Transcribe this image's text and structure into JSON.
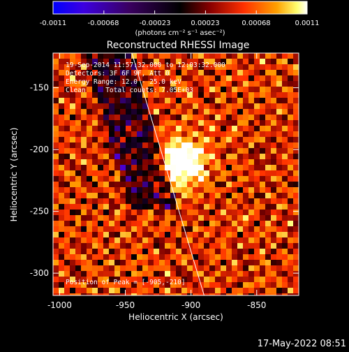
{
  "chart_data": {
    "type": "heatmap",
    "title": "Reconstructed RHESSI Image",
    "xlabel": "Heliocentric X (arcsec)",
    "ylabel": "Heliocentric Y (arcsec)",
    "xlim": [
      -1005,
      -818
    ],
    "ylim": [
      -318,
      -122
    ],
    "x_ticks": [
      -1000,
      -950,
      -900,
      -850
    ],
    "y_ticks": [
      -150,
      -200,
      -250,
      -300
    ],
    "x_tick_labels": [
      "-1000",
      "-950",
      "-900",
      "-850"
    ],
    "y_tick_labels": [
      "-150",
      "-200",
      "-250",
      "-300"
    ],
    "colorbar": {
      "range": [
        -0.0011,
        0.0011
      ],
      "tick_labels": [
        "-0.0011",
        "-0.00068",
        "-0.00023",
        "0.00023",
        "0.00068",
        "0.0011"
      ],
      "unit_label": "(photons cm⁻² s⁻¹ asec⁻²)",
      "colors": [
        "#0000ff",
        "#4b00d0",
        "#23003a",
        "#000000",
        "#7a0000",
        "#ff3000",
        "#ff9900",
        "#ffff80",
        "#ffffff"
      ]
    },
    "annotations": {
      "line1": "19-Sep-2014 11:57:32.000 to 12:03:32.000",
      "line2": "Detectors: 3F 6F 9F, Att 0",
      "line3": "Energy Range: 12.0 - 25.0 keV",
      "line4": "Clean     Total counts: 7.05E+03",
      "peak": "Position of Peak = [-905,-210]"
    },
    "peak_position": [
      -905,
      -210
    ],
    "limb_line": {
      "x": [
        -945,
        -890
      ],
      "y": [
        -122,
        -318
      ]
    }
  },
  "footer": {
    "timestamp": "17-May-2022 08:51"
  }
}
